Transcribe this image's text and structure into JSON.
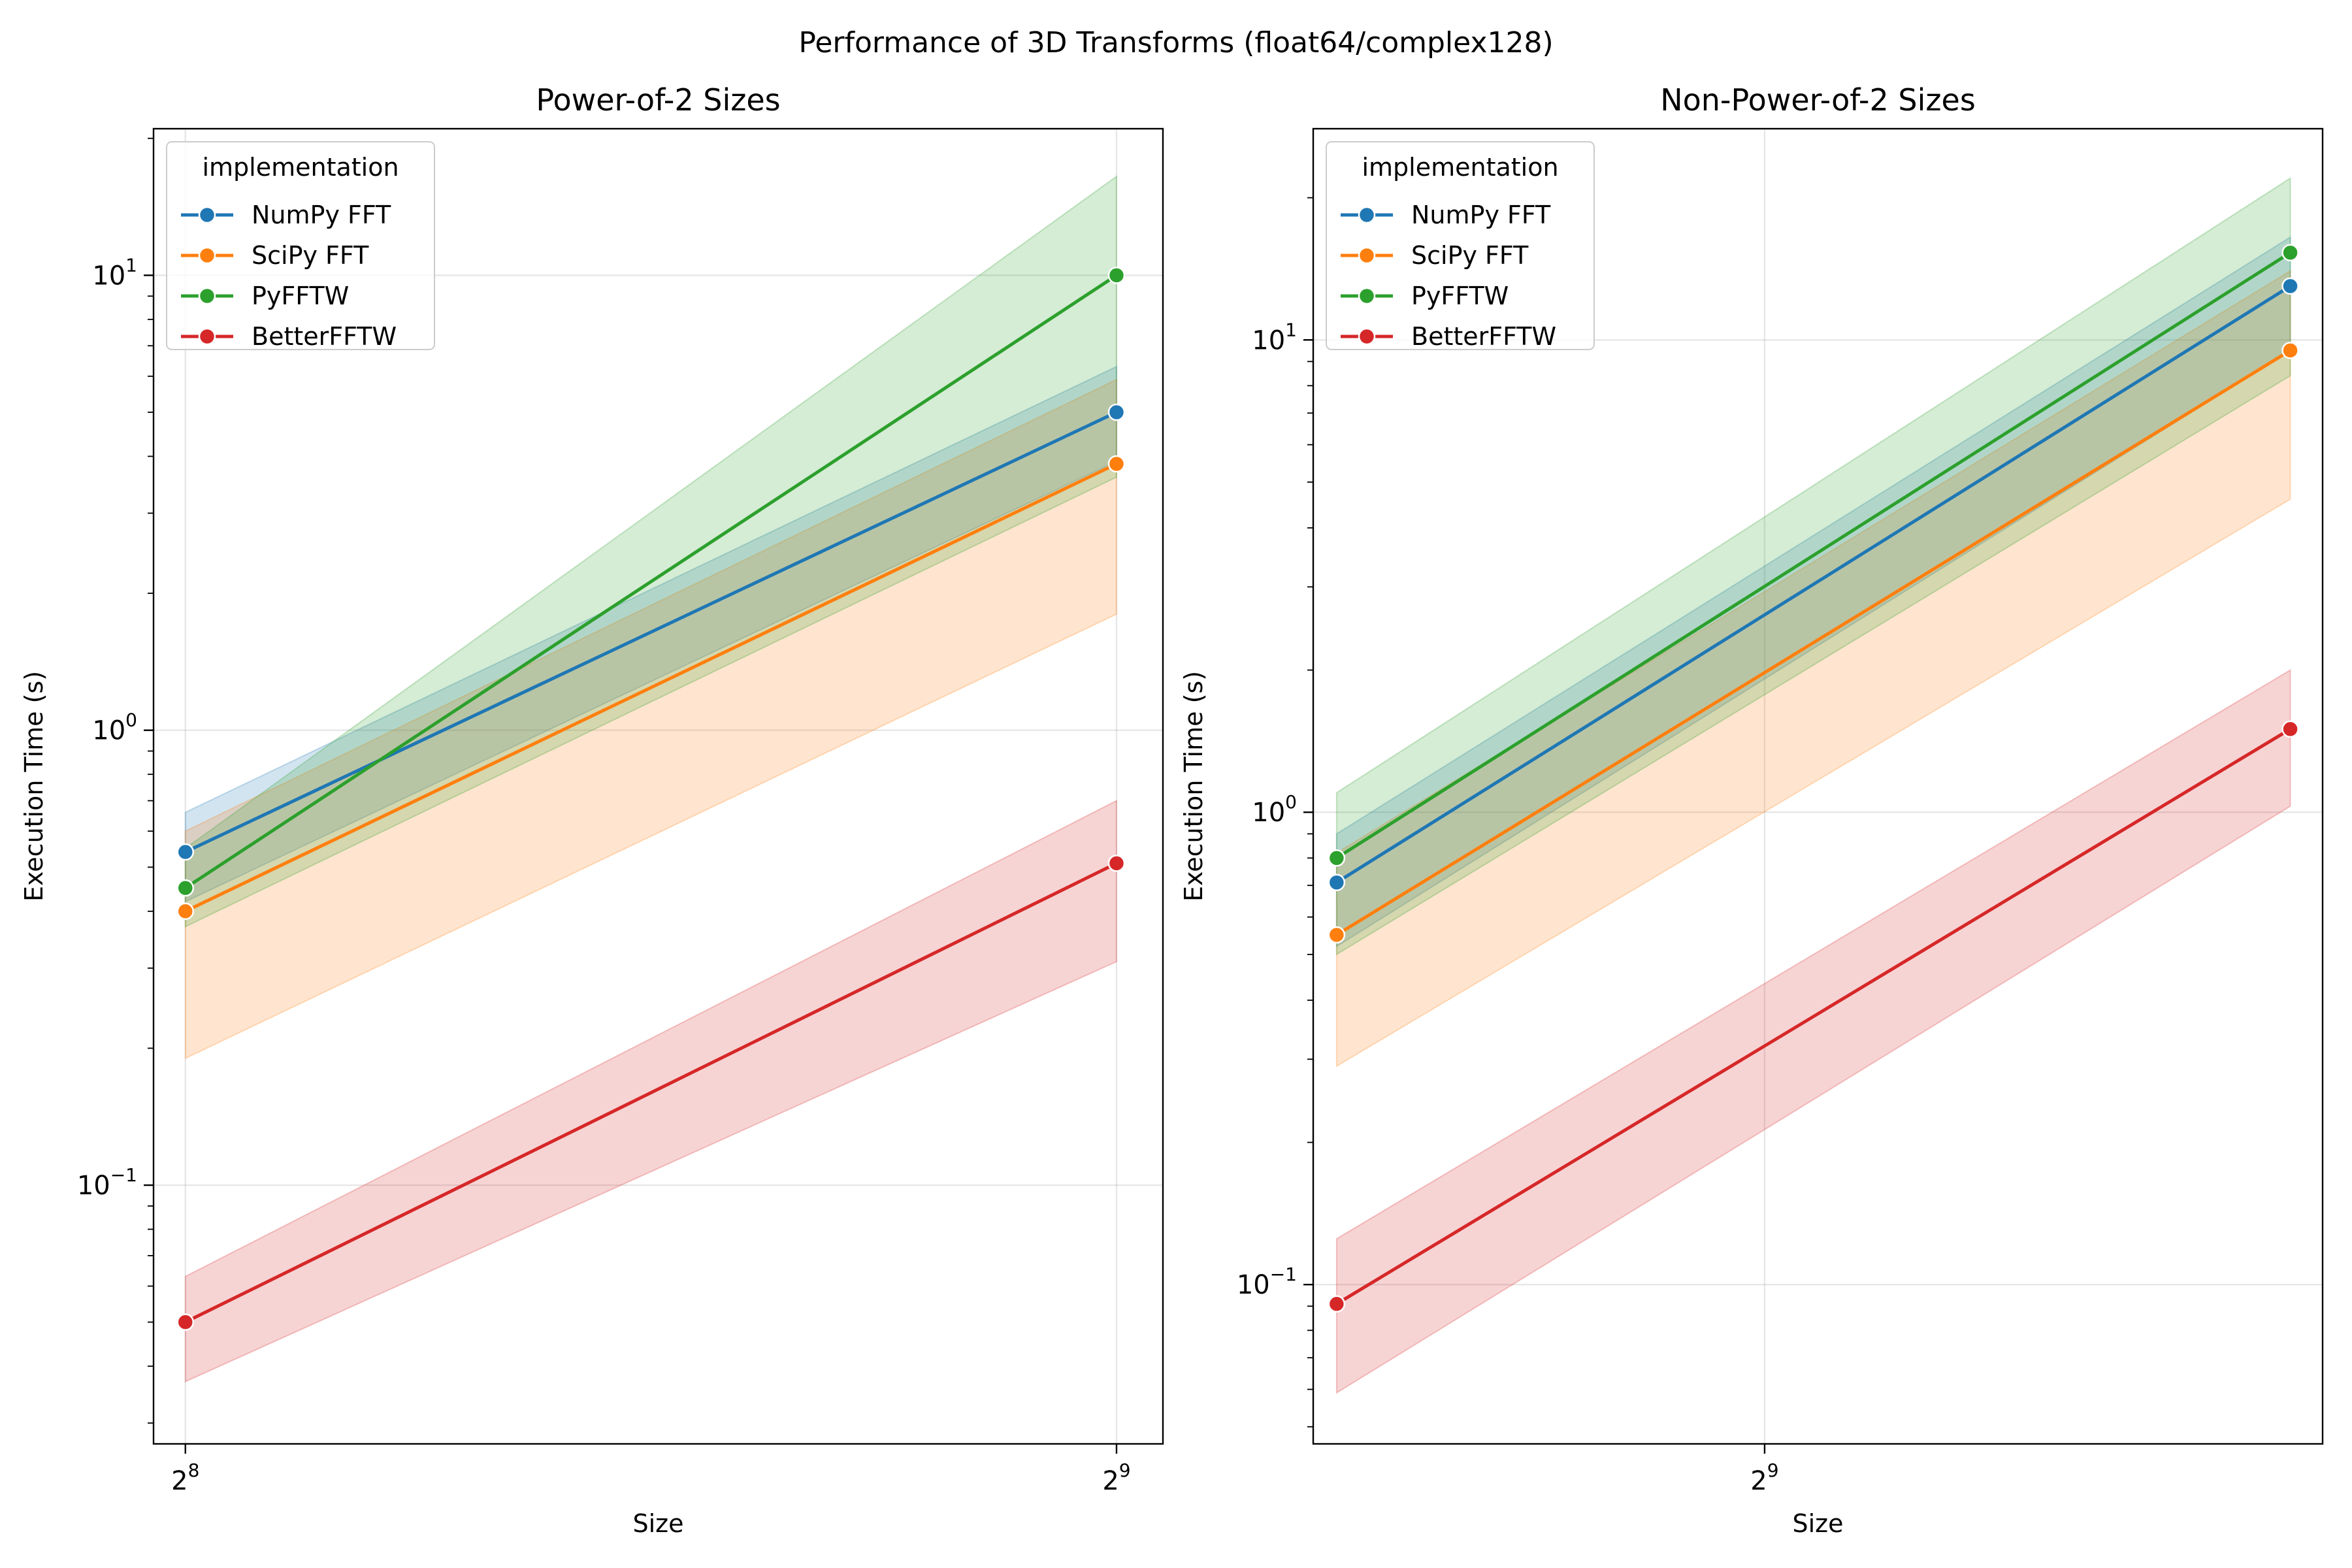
{
  "figure": {
    "suptitle": "Performance of 3D Transforms (float64/complex128)"
  },
  "colors": {
    "NumPy FFT": "#1f77b4",
    "SciPy FFT": "#ff7f0e",
    "PyFFTW": "#2ca02c",
    "BetterFFTW": "#d62728"
  },
  "chart_data": [
    {
      "type": "line",
      "title": "Power-of-2 Sizes",
      "xlabel": "Size",
      "ylabel": "Execution Time (s)",
      "xscale": "log2",
      "yscale": "log",
      "x": [
        256,
        512
      ],
      "xlim": [
        250,
        530
      ],
      "ylim": [
        0.027,
        21
      ],
      "xticks": [
        {
          "value": 256,
          "base": "2",
          "exp": "8"
        },
        {
          "value": 512,
          "base": "2",
          "exp": "9"
        }
      ],
      "yticks": [
        {
          "value": 0.1,
          "base": "10",
          "exp": "−1"
        },
        {
          "value": 1,
          "base": "10",
          "exp": "0"
        },
        {
          "value": 10,
          "base": "10",
          "exp": "1"
        }
      ],
      "grid": true,
      "legend": {
        "title": "implementation",
        "position": "top-left"
      },
      "series": [
        {
          "name": "NumPy FFT",
          "values": [
            0.54,
            5.0
          ],
          "lower": [
            0.42,
            3.9
          ],
          "upper": [
            0.66,
            6.3
          ]
        },
        {
          "name": "SciPy FFT",
          "values": [
            0.4,
            3.85
          ],
          "lower": [
            0.19,
            1.8
          ],
          "upper": [
            0.6,
            5.9
          ]
        },
        {
          "name": "PyFFTW",
          "values": [
            0.45,
            10.0
          ],
          "lower": [
            0.37,
            3.6
          ],
          "upper": [
            0.55,
            16.5
          ]
        },
        {
          "name": "BetterFFTW",
          "values": [
            0.05,
            0.51
          ],
          "lower": [
            0.037,
            0.31
          ],
          "upper": [
            0.063,
            0.7
          ]
        }
      ]
    },
    {
      "type": "line",
      "title": "Non-Power-of-2 Sizes",
      "xlabel": "Size",
      "ylabel": "Execution Time (s)",
      "xscale": "log2",
      "yscale": "log",
      "x": [
        384,
        729
      ],
      "xlim": [
        378,
        745
      ],
      "ylim": [
        0.046,
        28
      ],
      "xticks": [
        {
          "value": 512,
          "base": "2",
          "exp": "9"
        }
      ],
      "yticks": [
        {
          "value": 0.1,
          "base": "10",
          "exp": "−1"
        },
        {
          "value": 1,
          "base": "10",
          "exp": "0"
        },
        {
          "value": 10,
          "base": "10",
          "exp": "1"
        }
      ],
      "grid": true,
      "legend": {
        "title": "implementation",
        "position": "top-left"
      },
      "series": [
        {
          "name": "NumPy FFT",
          "values": [
            0.71,
            13.0
          ],
          "lower": [
            0.52,
            9.5
          ],
          "upper": [
            0.9,
            16.5
          ]
        },
        {
          "name": "SciPy FFT",
          "values": [
            0.55,
            9.5
          ],
          "lower": [
            0.29,
            4.6
          ],
          "upper": [
            0.82,
            14.0
          ]
        },
        {
          "name": "PyFFTW",
          "values": [
            0.8,
            15.3
          ],
          "lower": [
            0.5,
            8.4
          ],
          "upper": [
            1.1,
            22.0
          ]
        },
        {
          "name": "BetterFFTW",
          "values": [
            0.091,
            1.5
          ],
          "lower": [
            0.059,
            1.03
          ],
          "upper": [
            0.125,
            2.0
          ]
        }
      ]
    }
  ]
}
